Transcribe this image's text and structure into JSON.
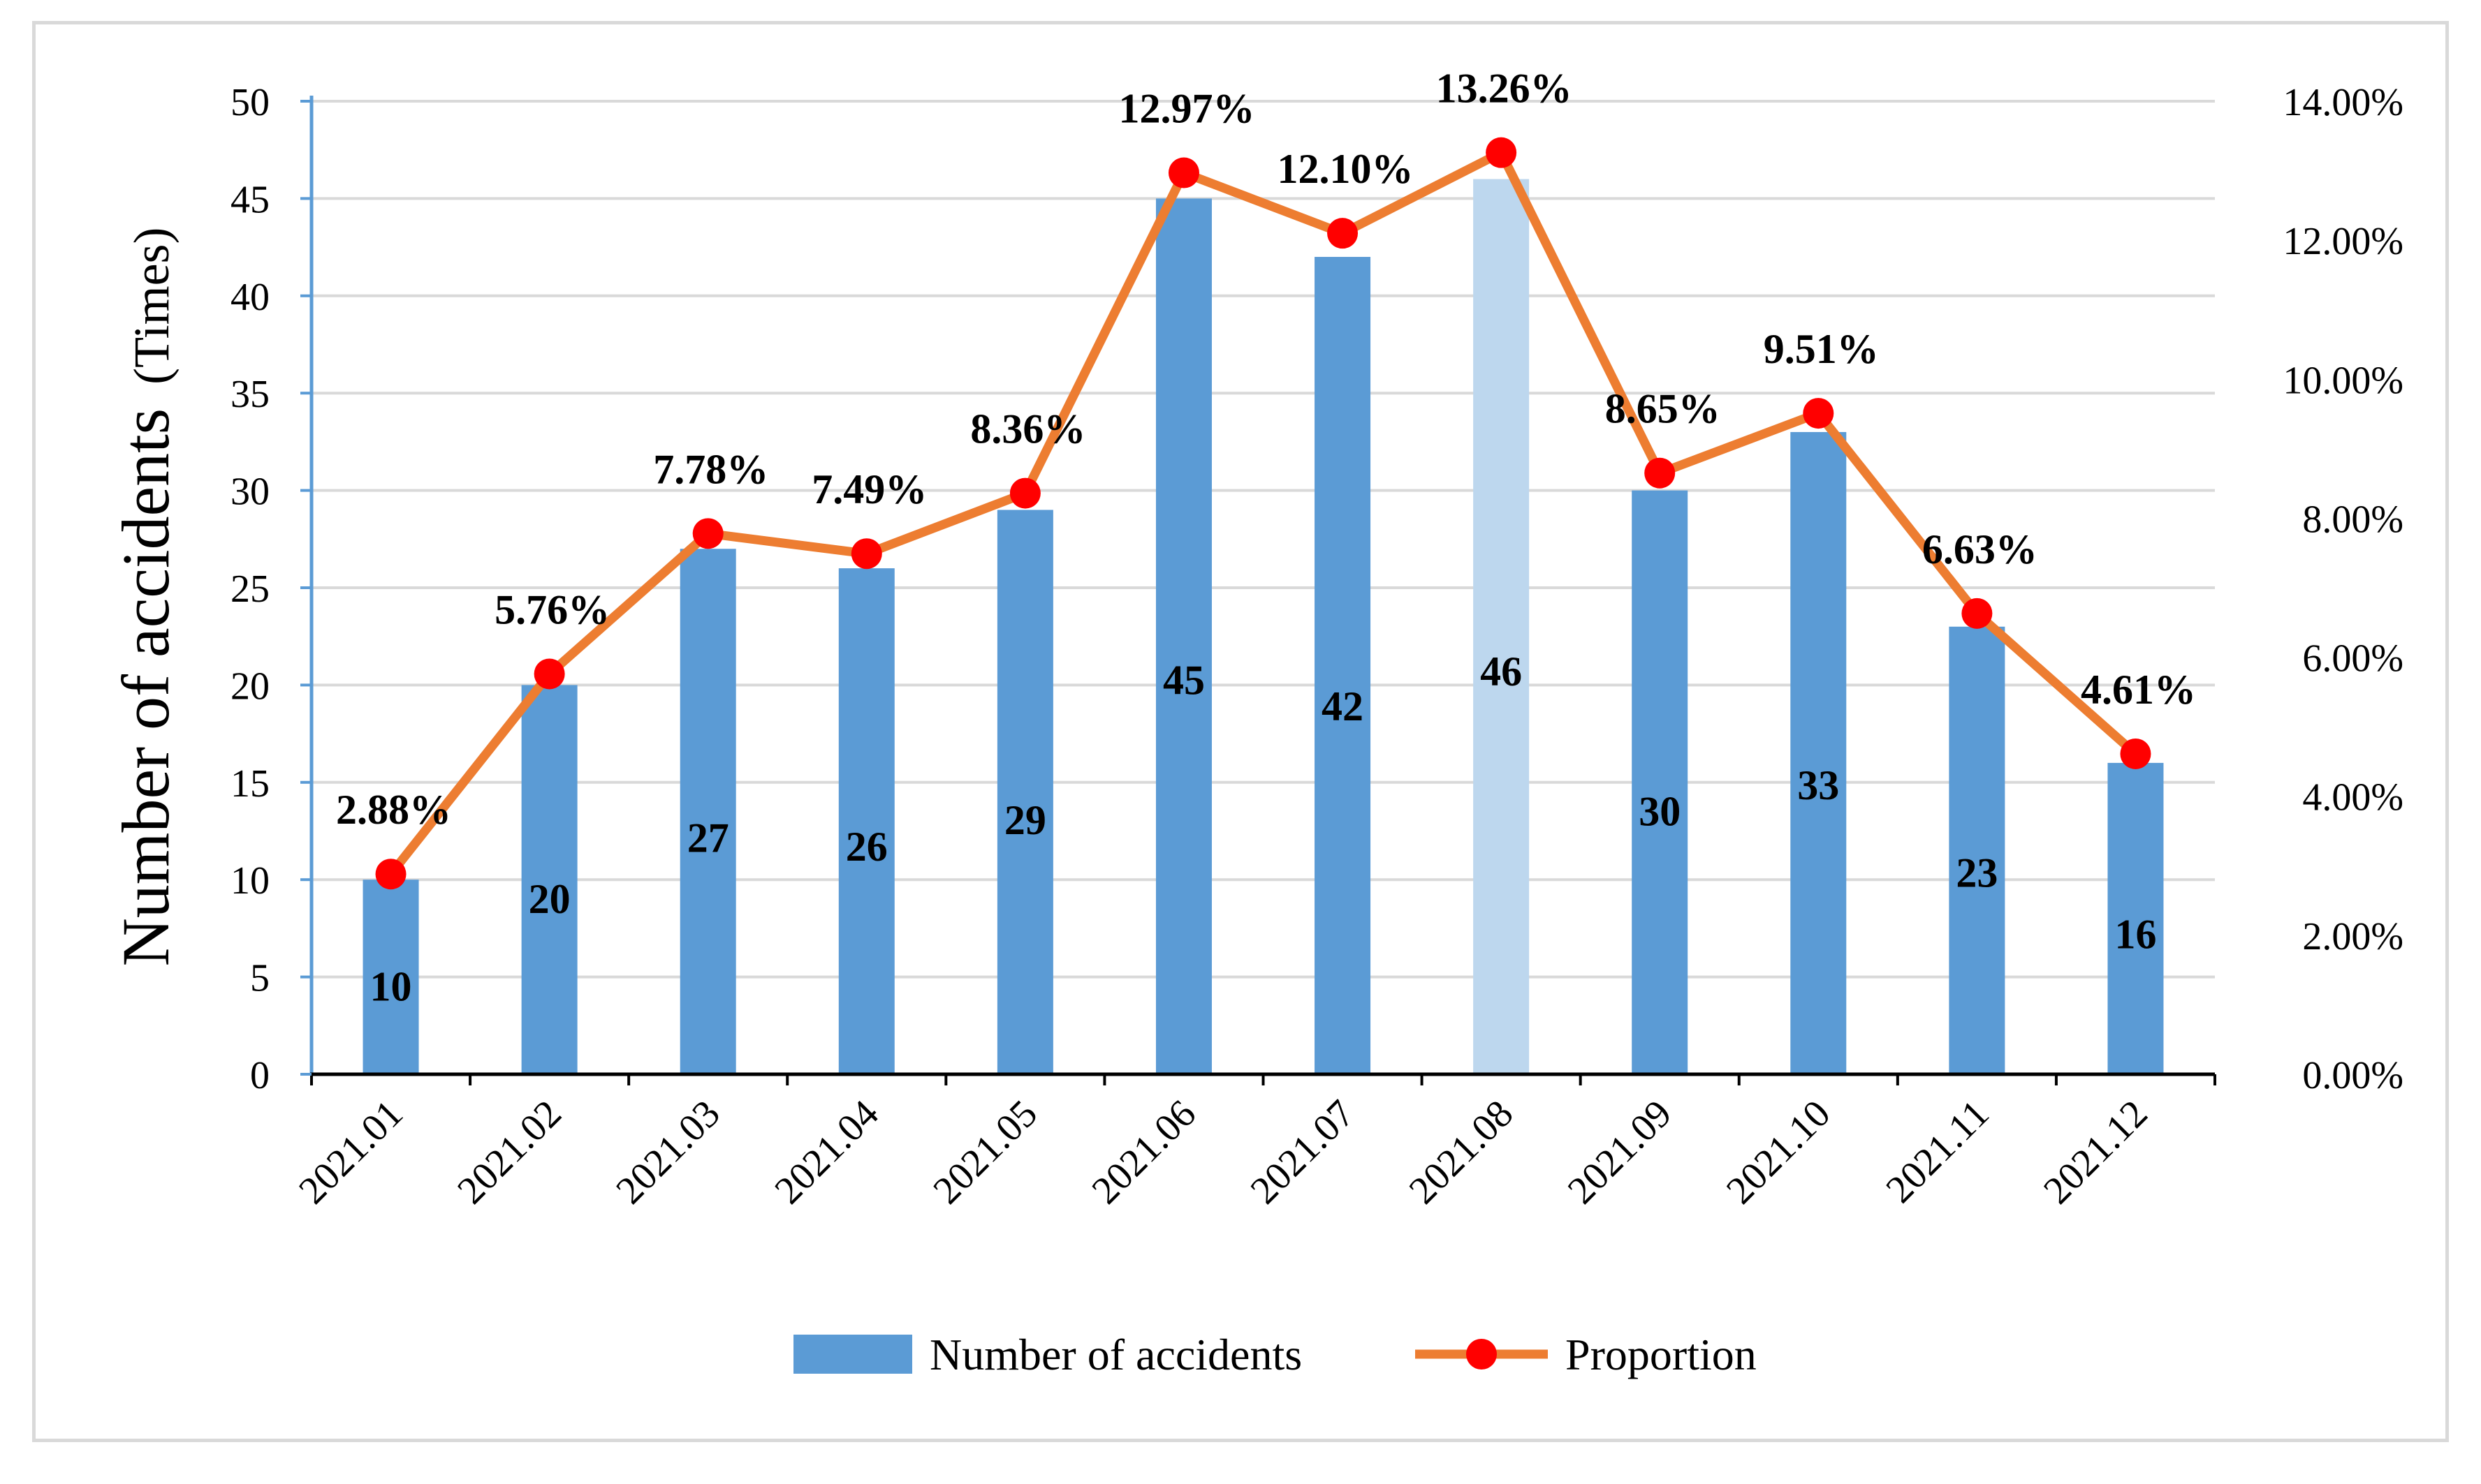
{
  "chart_data": {
    "type": "bar",
    "categories": [
      "2021.01",
      "2021.02",
      "2021.03",
      "2021.04",
      "2021.05",
      "2021.06",
      "2021.07",
      "2021.08",
      "2021.09",
      "2021.10",
      "2021.11",
      "2021.12"
    ],
    "series": [
      {
        "name": "Number of accidents",
        "type": "bar",
        "axis": "left",
        "color": "#5b9bd5",
        "highlight_color": "#bdd7ee",
        "highlight_index": 7,
        "values": [
          10,
          20,
          27,
          26,
          29,
          45,
          42,
          46,
          30,
          33,
          23,
          16
        ],
        "labels": [
          "10",
          "20",
          "27",
          "26",
          "29",
          "45",
          "42",
          "46",
          "30",
          "33",
          "23",
          "16"
        ]
      },
      {
        "name": "Proportion",
        "type": "line",
        "axis": "right",
        "line_color": "#ed7d31",
        "marker_color": "#ff0000",
        "values": [
          2.88,
          5.76,
          7.78,
          7.49,
          8.36,
          12.97,
          12.1,
          13.26,
          8.65,
          9.51,
          6.63,
          4.61
        ],
        "labels": [
          "2.88%",
          "5.76%",
          "7.78%",
          "7.49%",
          "8.36%",
          "12.97%",
          "12.10%",
          "13.26%",
          "8.65%",
          "9.51%",
          "6.63%",
          "4.61%"
        ]
      }
    ],
    "ylabel": "Number of accidents",
    "ylabel_unit": "(Times)",
    "ylim": [
      0,
      50
    ],
    "y_ticks": [
      "0",
      "5",
      "10",
      "15",
      "20",
      "25",
      "30",
      "35",
      "40",
      "45",
      "50"
    ],
    "y2lim": [
      0,
      14
    ],
    "y2_ticks": [
      "0.00%",
      "2.00%",
      "4.00%",
      "6.00%",
      "8.00%",
      "10.00%",
      "12.00%",
      "14.00%"
    ],
    "grid": true,
    "legend": [
      "Number of accidents",
      "Proportion"
    ],
    "legend_position": "bottom"
  }
}
